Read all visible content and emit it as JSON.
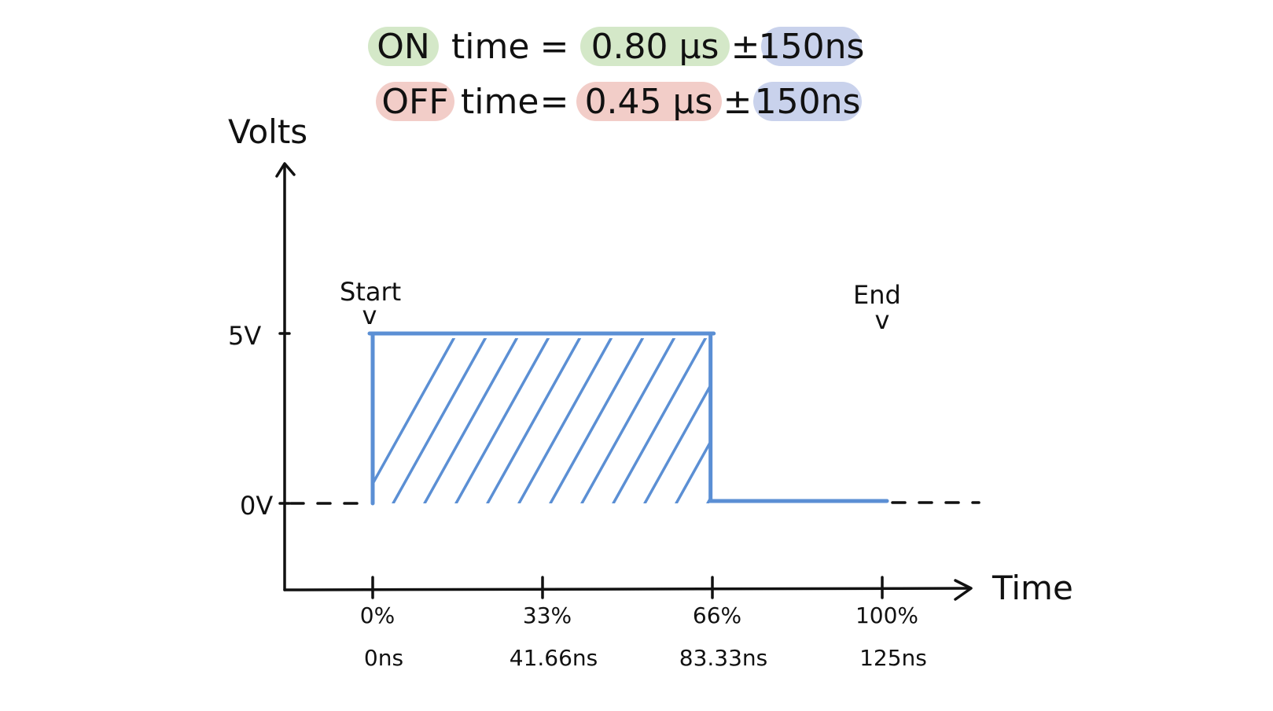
{
  "equations": {
    "on": {
      "label": "ON",
      "word": "time",
      "equals": "=",
      "value": "0.80 µs",
      "pm": "±",
      "tolerance": "150ns",
      "label_color": "#d4e8c8",
      "value_color": "#d4e8c8",
      "tolerance_color": "#c9d2ec"
    },
    "off": {
      "label": "OFF",
      "word": "time",
      "equals": "=",
      "value": "0.45 µs",
      "pm": "±",
      "tolerance": "150ns",
      "label_color": "#f2cdc8",
      "value_color": "#f2cdc8",
      "tolerance_color": "#c9d2ec"
    }
  },
  "axes": {
    "y_label": "Volts",
    "x_label": "Time",
    "y_ticks": [
      "5V",
      "0V"
    ]
  },
  "annotations": {
    "start": "Start",
    "start_marker": "v",
    "end": "End",
    "end_marker": "v"
  },
  "x_ticks": [
    {
      "percent": "0%",
      "time": "0ns"
    },
    {
      "percent": "33%",
      "time": "41.66ns"
    },
    {
      "percent": "66%",
      "time": "83.33ns"
    },
    {
      "percent": "100%",
      "time": "125ns"
    }
  ],
  "signal": {
    "color": "#5b8fd4",
    "high_voltage": 5,
    "low_voltage": 0,
    "high_from_fraction": 0.0,
    "high_to_fraction": 0.66
  }
}
